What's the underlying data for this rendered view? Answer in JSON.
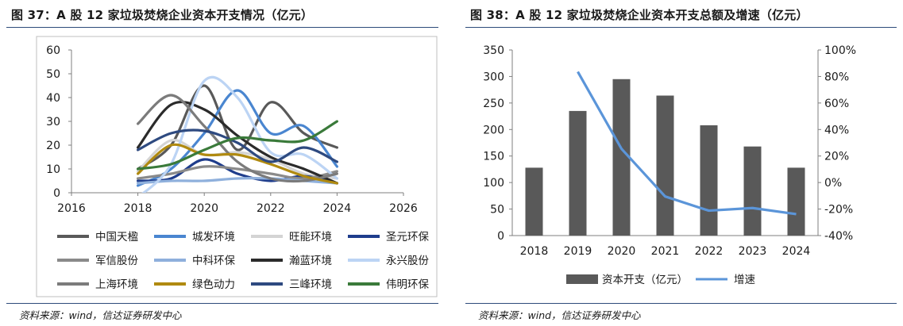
{
  "figure_left": {
    "title": "图 37：A 股 12 家垃圾焚烧企业资本开支情况（亿元）",
    "source": "资料来源：wind，信达证券研发中心"
  },
  "figure_right": {
    "title": "图 38：A 股 12 家垃圾焚烧企业资本开支总额及增速（亿元）",
    "source": "资料来源：wind，信达证券研发中心"
  },
  "chart_data": [
    {
      "type": "line",
      "smooth": true,
      "title": "",
      "xlabel": "",
      "ylabel": "",
      "xlim": [
        2016,
        2026
      ],
      "ylim": [
        0,
        60
      ],
      "x_ticks": [
        "2016",
        "2018",
        "2020",
        "2022",
        "2024",
        "2026"
      ],
      "y_ticks": [
        "0",
        "10",
        "20",
        "30",
        "40",
        "50",
        "60"
      ],
      "x": [
        2018,
        2019,
        2020,
        2021,
        2022,
        2023,
        2024
      ],
      "legend_position": "bottom",
      "grid": false,
      "series": [
        {
          "name": "中国天楹",
          "color": "#595959",
          "values": [
            10,
            20,
            45,
            18,
            38,
            25,
            19
          ]
        },
        {
          "name": "城发环境",
          "color": "#4a86d0",
          "values": [
            3,
            10,
            25,
            43,
            25,
            28,
            11
          ]
        },
        {
          "name": "旺能环境",
          "color": "#d4d4d4",
          "values": [
            9,
            22,
            16,
            17,
            14,
            8,
            6
          ]
        },
        {
          "name": "圣元环保",
          "color": "#1f3d8c",
          "values": [
            5,
            6,
            14,
            8,
            5,
            7,
            4
          ]
        },
        {
          "name": "军信股份",
          "color": "#8a8a8a",
          "values": [
            6,
            8,
            11,
            10,
            8,
            6,
            9
          ]
        },
        {
          "name": "中科环保",
          "color": "#8fb0dc",
          "values": [
            4,
            5,
            5,
            6,
            6,
            5,
            4
          ]
        },
        {
          "name": "瀚蓝环境",
          "color": "#2b2b2b",
          "values": [
            19,
            37,
            35,
            24,
            15,
            10,
            4
          ]
        },
        {
          "name": "永兴股份",
          "color": "#bcd4f4",
          "values": [
            -2,
            12,
            47,
            40,
            17,
            16,
            6
          ]
        },
        {
          "name": "上海环境",
          "color": "#7b7b7b",
          "values": [
            29,
            41,
            28,
            13,
            6,
            5,
            8
          ]
        },
        {
          "name": "绿色动力",
          "color": "#b08a10",
          "values": [
            8,
            20,
            16,
            16,
            12,
            7,
            4
          ]
        },
        {
          "name": "三峰环境",
          "color": "#2e4a80",
          "values": [
            18,
            25,
            26,
            21,
            13,
            19,
            13
          ]
        },
        {
          "name": "伟明环保",
          "color": "#3a7a3a",
          "values": [
            10,
            12,
            18,
            23,
            22,
            22,
            30
          ]
        }
      ]
    },
    {
      "type": "bar+line",
      "title": "",
      "categories": [
        "2018",
        "2019",
        "2020",
        "2021",
        "2022",
        "2023",
        "2024"
      ],
      "ylim_left": [
        0,
        350
      ],
      "ylim_right": [
        -40,
        100
      ],
      "y_ticks_left": [
        "0",
        "50",
        "100",
        "150",
        "200",
        "250",
        "300",
        "350"
      ],
      "y_ticks_right": [
        "-40%",
        "-20%",
        "0%",
        "20%",
        "40%",
        "60%",
        "80%",
        "100%"
      ],
      "legend_position": "bottom",
      "grid": false,
      "series": [
        {
          "name": "资本开支（亿元）",
          "type": "bar",
          "axis": "left",
          "color": "#595959",
          "values": [
            128,
            235,
            295,
            264,
            208,
            168,
            128
          ]
        },
        {
          "name": "增速",
          "type": "line",
          "axis": "right",
          "color": "#5b95d9",
          "values": [
            null,
            83.6,
            25.5,
            -10.5,
            -21.2,
            -19.2,
            -23.8
          ]
        }
      ]
    }
  ]
}
